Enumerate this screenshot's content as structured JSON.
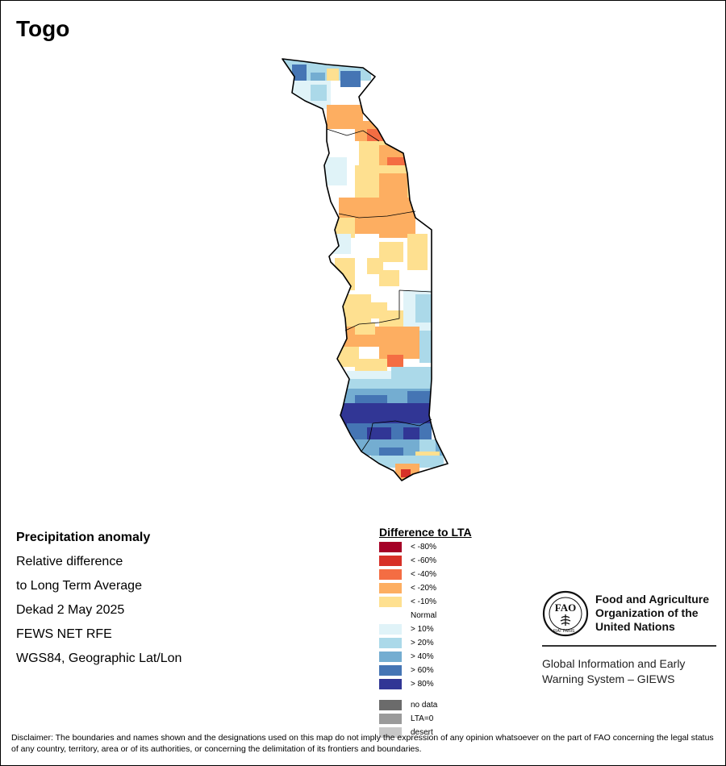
{
  "title": "Togo",
  "info": {
    "heading": "Precipitation anomaly",
    "line1": "Relative difference",
    "line2": "to Long Term Average",
    "period": "Dekad 2 May 2025",
    "source": "FEWS NET RFE",
    "projection": "WGS84, Geographic Lat/Lon"
  },
  "legend": {
    "title": "Difference to LTA",
    "items": [
      {
        "label": "< -80%",
        "color": "#a50026"
      },
      {
        "label": "< -60%",
        "color": "#d73027"
      },
      {
        "label": "< -40%",
        "color": "#f46d43"
      },
      {
        "label": "< -20%",
        "color": "#fdae61"
      },
      {
        "label": "< -10%",
        "color": "#fee090"
      },
      {
        "label": "Normal",
        "color": "#ffffff"
      },
      {
        "label": "> 10%",
        "color": "#e0f3f8"
      },
      {
        "label": "> 20%",
        "color": "#abd9e9"
      },
      {
        "label": "> 40%",
        "color": "#74add1"
      },
      {
        "label": "> 60%",
        "color": "#4575b4"
      },
      {
        "label": "> 80%",
        "color": "#313695"
      }
    ],
    "extra": [
      {
        "label": "no data",
        "color": "#6b6b6b"
      },
      {
        "label": "LTA=0",
        "color": "#9a9a9a"
      },
      {
        "label": "desert",
        "color": "#c8c8c8"
      }
    ]
  },
  "fao": {
    "name_line1": "Food and Agriculture",
    "name_line2": "Organization of the",
    "name_line3": "United Nations",
    "giews_line1": "Global Information and Early",
    "giews_line2": "Warning System – GIEWS",
    "logo_text": "FIAT PANIS"
  },
  "disclaimer": "Disclaimer: The boundaries and names shown and the designations used on this map do not imply the expression of any opinion whatsoever on the part of FAO concerning the legal status of any country, territory, area or of its authorities, or concerning the delimitation of its frontiers and boundaries."
}
